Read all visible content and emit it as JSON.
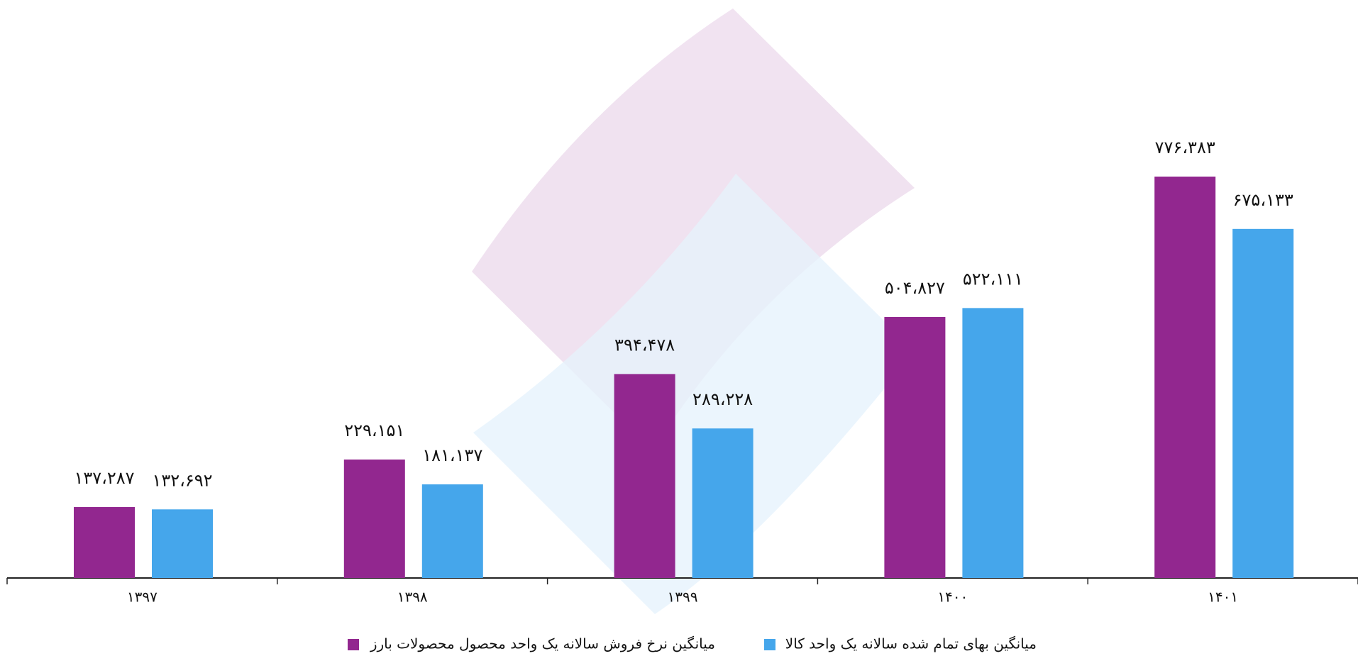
{
  "chart_data": {
    "type": "bar",
    "categories": [
      "۱۳۹۷",
      "۱۳۹۸",
      "۱۳۹۹",
      "۱۴۰۰",
      "۱۴۰۱"
    ],
    "series": [
      {
        "name": "میانگین نرخ فروش سالانه یک واحد محصول محصولات بارز",
        "color": "#92278f",
        "values": [
          137287,
          229151,
          394478,
          504827,
          776383
        ],
        "value_labels": [
          "۱۳۷،۲۸۷",
          "۲۲۹،۱۵۱",
          "۳۹۴،۴۷۸",
          "۵۰۴،۸۲۷",
          "۷۷۶،۳۸۳"
        ]
      },
      {
        "name": "میانگین بهای تمام شده سالانه یک واحد  کالا",
        "color": "#45a6eb",
        "values": [
          132692,
          181137,
          289228,
          522111,
          675133
        ],
        "value_labels": [
          "۱۳۲،۶۹۲",
          "۱۸۱،۱۳۷",
          "۲۸۹،۲۲۸",
          "۵۲۲،۱۱۱",
          "۶۷۵،۱۳۳"
        ]
      }
    ],
    "legend": "bottom"
  }
}
